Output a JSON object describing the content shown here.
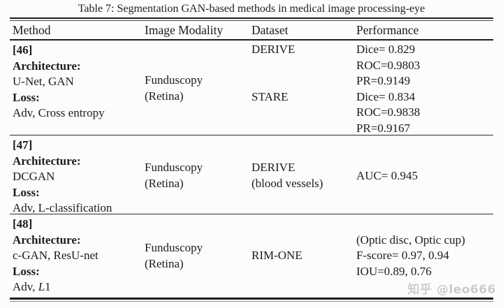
{
  "title": "Table 7: Segmentation GAN-based methods in medical image processing-eye",
  "columns": [
    "Method",
    "Image Modality",
    "Dataset",
    "Performance"
  ],
  "rows": [
    {
      "ref": "[46]",
      "arch_label": "Architecture:",
      "arch_value": "U-Net, GAN",
      "loss_label": "Loss:",
      "loss_value": "Adv, Cross entropy",
      "modality": [
        "Funduscopy",
        "(Retina)"
      ],
      "datasets": [
        {
          "name": "DERIVE"
        },
        {
          "name": "STARE"
        }
      ],
      "performance": [
        "Dice= 0.829",
        "ROC=0.9803",
        "PR=0.9149",
        "Dice= 0.834",
        "ROC=0.9838",
        "PR=0.9167"
      ]
    },
    {
      "ref": "[47]",
      "arch_label": "Architecture:",
      "arch_value": "DCGAN",
      "loss_label": "Loss:",
      "loss_value": "Adv, L-classification",
      "modality": [
        "Funduscopy",
        "(Retina)"
      ],
      "datasets": [
        {
          "name": "DERIVE",
          "sub": "(blood vessels)"
        }
      ],
      "performance": [
        "AUC= 0.945"
      ]
    },
    {
      "ref": "[48]",
      "arch_label": "Architecture:",
      "arch_value": "c-GAN, ResU-net",
      "loss_label": "Loss:",
      "loss_value_prefix": "Adv, ",
      "loss_math": "L",
      "loss_suffix": "1",
      "modality": [
        "Funduscopy",
        "(Retina)"
      ],
      "datasets": [
        {
          "name": "RIM-ONE"
        }
      ],
      "performance": [
        "(Optic disc, Optic cup)",
        "F-score= 0.97, 0.94",
        "IOU=0.89, 0.76"
      ]
    }
  ],
  "watermark": "知乎 @leo666"
}
